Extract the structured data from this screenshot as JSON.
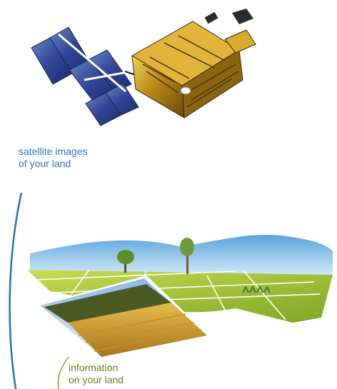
{
  "captions": {
    "satellite": [
      "satellite images",
      "of your land"
    ],
    "land": [
      "information",
      "on your land"
    ]
  },
  "colors": {
    "satellite_text": "#2f77bd",
    "land_text": "#6f7f21",
    "solar_panel": "#2c3f8c",
    "satellite_body": "#c89a1e",
    "sky": "#9fcbe8",
    "field": "#a8c33c",
    "wheat": "#d8a52e"
  },
  "illustrations": {
    "satellite": "satellite-illustration",
    "landscape": "landscape-illustration",
    "photo": "wheat-field-photo"
  }
}
